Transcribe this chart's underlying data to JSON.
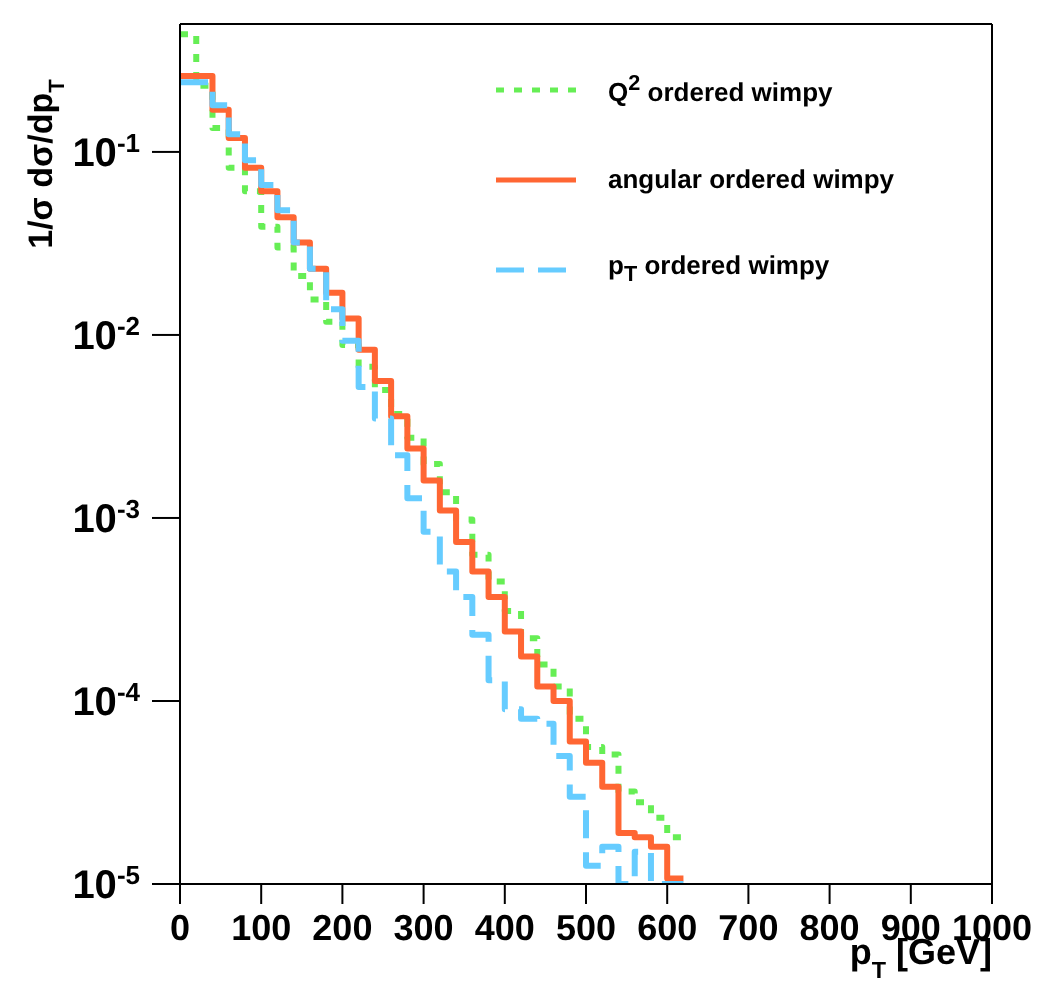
{
  "chart_data": {
    "type": "histogram",
    "xlabel": "p$_{T}$ [GeV]",
    "ylabel": "1/σ dσ/dp$_{T}$",
    "bins": [
      0,
      20,
      40,
      60,
      80,
      100,
      120,
      140,
      160,
      180,
      200,
      220,
      240,
      260,
      280,
      300,
      320,
      340,
      360,
      380,
      400,
      420,
      440,
      460,
      480,
      500,
      520,
      540,
      560,
      580,
      600,
      620
    ],
    "series": [
      {
        "name": "Q$^{2}$ ordered wimpy",
        "color": "#66ee55",
        "line_style": "dotted",
        "values": [
          0.44,
          0.23,
          0.135,
          0.082,
          0.061,
          0.039,
          0.03,
          0.021,
          0.0156,
          0.0118,
          0.0088,
          0.0067,
          0.005,
          0.0037,
          0.00274,
          0.00197,
          0.00138,
          0.00098,
          0.00063,
          0.00045,
          0.00031,
          0.00022,
          0.000158,
          0.00012,
          8e-05,
          5.6e-05,
          5.1e-05,
          3.2e-05,
          2.8e-05,
          2.3e-05,
          1.8e-05
        ]
      },
      {
        "name": "angular ordered wimpy",
        "color": "#ff6633",
        "line_style": "solid",
        "values": [
          0.26,
          0.26,
          0.17,
          0.119,
          0.082,
          0.061,
          0.044,
          0.032,
          0.023,
          0.017,
          0.0123,
          0.0083,
          0.0056,
          0.0036,
          0.0024,
          0.0016,
          0.0011,
          0.00074,
          0.00051,
          0.00037,
          0.00024,
          0.000175,
          0.00012,
          0.0001,
          6e-05,
          4.6e-05,
          3.4e-05,
          1.9e-05,
          1.8e-05,
          1.6e-05,
          1.07e-05
        ]
      },
      {
        "name": "p$_{T}$ ordered wimpy",
        "color": "#66ccff",
        "line_style": "dashed",
        "values": [
          0.24,
          0.24,
          0.18,
          0.125,
          0.09,
          0.066,
          0.048,
          0.032,
          0.023,
          0.0138,
          0.0093,
          0.0052,
          0.0035,
          0.0022,
          0.00128,
          0.00084,
          0.00051,
          0.00037,
          0.00023,
          0.00013,
          9e-05,
          8e-05,
          7.5e-05,
          5e-05,
          3e-05,
          1.26e-05,
          1.6e-05,
          1e-05,
          1.5e-05,
          1e-05,
          1e-05
        ]
      }
    ],
    "xlim": [
      0,
      1000
    ],
    "xticks": [
      0,
      100,
      200,
      300,
      400,
      500,
      600,
      700,
      800,
      900,
      1000
    ],
    "ylim": [
      1e-05,
      0.5
    ],
    "log": "y",
    "yticks": [
      {
        "value": 1e-05,
        "label": "10$^{-5}$"
      },
      {
        "value": 0.0001,
        "label": "10$^{-4}$"
      },
      {
        "value": 0.001,
        "label": "10$^{-3}$"
      },
      {
        "value": 0.01,
        "label": "10$^{-2}$"
      },
      {
        "value": 0.1,
        "label": "10$^{-1}$"
      }
    ],
    "legend": "top right"
  }
}
